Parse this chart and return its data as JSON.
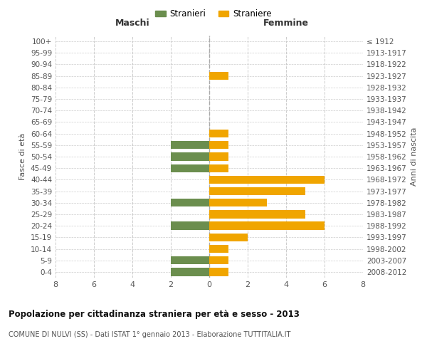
{
  "age_groups": [
    "0-4",
    "5-9",
    "10-14",
    "15-19",
    "20-24",
    "25-29",
    "30-34",
    "35-39",
    "40-44",
    "45-49",
    "50-54",
    "55-59",
    "60-64",
    "65-69",
    "70-74",
    "75-79",
    "80-84",
    "85-89",
    "90-94",
    "95-99",
    "100+"
  ],
  "birth_years": [
    "2008-2012",
    "2003-2007",
    "1998-2002",
    "1993-1997",
    "1988-1992",
    "1983-1987",
    "1978-1982",
    "1973-1977",
    "1968-1972",
    "1963-1967",
    "1958-1962",
    "1953-1957",
    "1948-1952",
    "1943-1947",
    "1938-1942",
    "1933-1937",
    "1928-1932",
    "1923-1927",
    "1918-1922",
    "1913-1917",
    "≤ 1912"
  ],
  "maschi": [
    2,
    2,
    0,
    0,
    2,
    0,
    2,
    0,
    0,
    2,
    2,
    2,
    0,
    0,
    0,
    0,
    0,
    0,
    0,
    0,
    0
  ],
  "femmine": [
    1,
    1,
    1,
    2,
    6,
    5,
    3,
    5,
    6,
    1,
    1,
    1,
    1,
    0,
    0,
    0,
    0,
    1,
    0,
    0,
    0
  ],
  "maschi_color": "#6b8e4e",
  "femmine_color": "#f0a500",
  "background_color": "#ffffff",
  "grid_color": "#cccccc",
  "title": "Popolazione per cittadinanza straniera per età e sesso - 2013",
  "subtitle": "COMUNE DI NULVI (SS) - Dati ISTAT 1° gennaio 2013 - Elaborazione TUTTITALIA.IT",
  "xlabel_left": "Maschi",
  "xlabel_right": "Femmine",
  "ylabel_left": "Fasce di età",
  "ylabel_right": "Anni di nascita",
  "legend_maschi": "Stranieri",
  "legend_femmine": "Straniere",
  "xlim": 8
}
